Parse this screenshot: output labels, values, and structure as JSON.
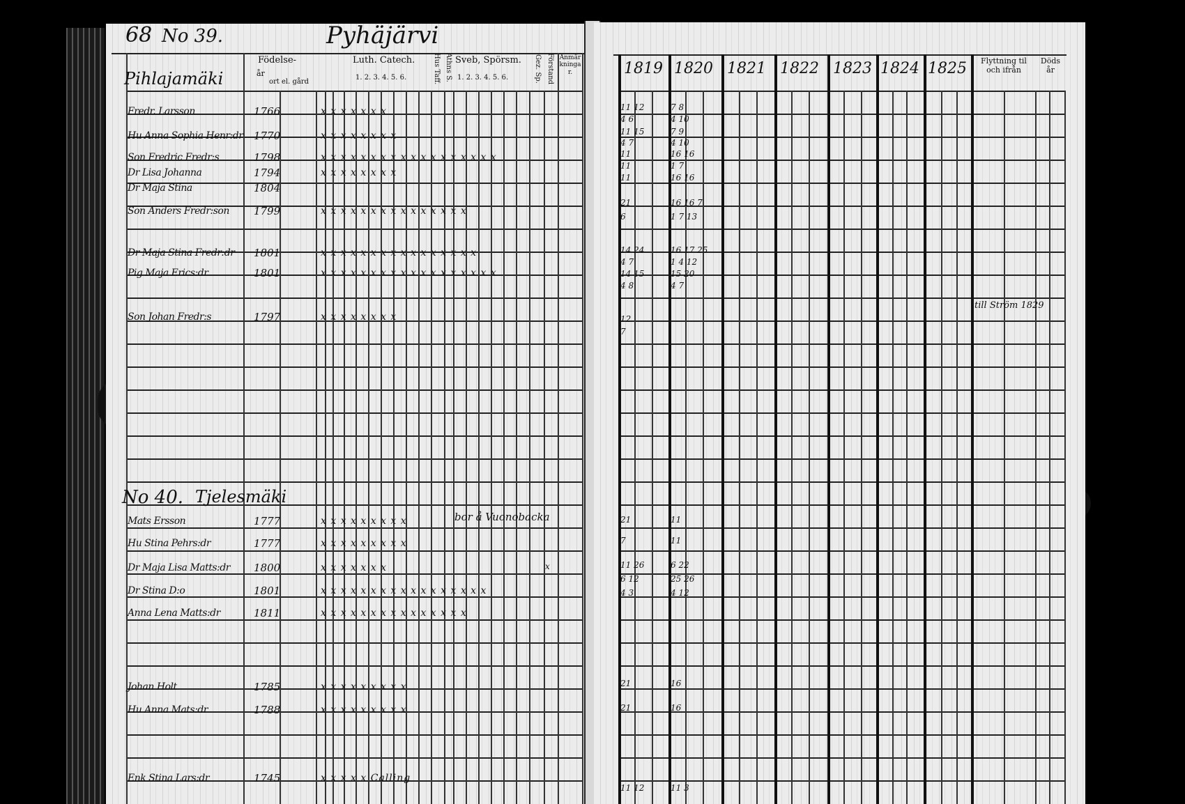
{
  "left_page": {
    "page_number": "68",
    "parish": "Pyhäjärvi",
    "headers": {
      "birth": "Födelse-",
      "year": "år",
      "place": "ort el. gård",
      "luth_catech": "Luth. Catech.",
      "luth_nums": "1. 2. 3. 4. 5. 6.",
      "hus_taff": "Hus Taff.",
      "athns": "Athns S.",
      "sveb": "Sveb, Spörsm.",
      "sveb_nums": "1. 2. 3. 4. 5. 6.",
      "gez": "Gez. Sp.",
      "forstand": "Förstand",
      "remarks": "Anmärkningar."
    },
    "households": [
      {
        "number": "No 39.",
        "farm": "Pihlajamäki",
        "members": [
          {
            "name": "Fredr. Larsson",
            "year": "1766",
            "marks": "x x x x x x x"
          },
          {
            "name": "Hu Anna Sophia Henr:dr",
            "year": "1770",
            "marks": "x x x x x x x x"
          },
          {
            "name": "Son Fredric Fredr:s",
            "year": "1798",
            "marks": "x x x x x x x x x x x x x x x x x  x"
          },
          {
            "name": "Dr Lisa Johanna",
            "year": "1794",
            "marks": "x x x x x x x x"
          },
          {
            "name": "Dr Maja Stina",
            "year": "1804",
            "marks": ""
          },
          {
            "name": "Son Anders Fredr:son",
            "year": "1799",
            "marks": "x x x x x x x x x x x x x x x"
          },
          {
            "name": "Dr Maja Stina Fredr:dr",
            "year": "1801",
            "marks": "x x x x x x x x x x x x x x x  x"
          },
          {
            "name": "Pig Maja Erics:dr",
            "year": "1801",
            "marks": "x x x x x x x x x x x x x x x x x  x"
          },
          {
            "name": "Son Johan Fredr:s",
            "year": "1797",
            "marks": "x x x x x x x x"
          }
        ]
      },
      {
        "number": "No 40.",
        "farm": "Tjelesmäki",
        "members": [
          {
            "name": "Mats Ersson",
            "year": "1777",
            "marks": "x x x x x x x x x",
            "note": "bor å Vuonobacka"
          },
          {
            "name": "Hu Stina Pehrs:dr",
            "year": "1777",
            "marks": "x x x x x x x x x"
          },
          {
            "name": "Dr Maja Lisa Matts:dr",
            "year": "1800",
            "marks": "x x x x x x x",
            "note2": "x"
          },
          {
            "name": "Dr Stina D:o",
            "year": "1801",
            "marks": "x x x x x x x x x x x x x x x x x"
          },
          {
            "name": "Anna Lena Matts:dr",
            "year": "1811",
            "marks": "x x x x x x x x x x x x x x x"
          },
          {
            "name": "Johan Holt",
            "year": "1785",
            "marks": "x x x x x x x x x"
          },
          {
            "name": "Hu Anna Mats:dr",
            "year": "1788",
            "marks": "x x x x x x x x x"
          },
          {
            "name": "Enk Stina Lars:dr",
            "year": "1745",
            "marks": "x x x x x  Calling"
          }
        ]
      }
    ]
  },
  "right_page": {
    "years": [
      "1819",
      "1820",
      "1821",
      "1822",
      "1823",
      "1824",
      "1825"
    ],
    "moving": "Flyttning til och ifrån",
    "death": "Döds år",
    "entries": [
      {
        "c1": "11 12",
        "c2": "7 8"
      },
      {
        "c1": "4 6",
        "c2": "4 10"
      },
      {
        "c1": "11 15",
        "c2": "7 9"
      },
      {
        "c1": "4 7",
        "c2": "4 10"
      },
      {
        "c1": "11",
        "c2": "16 16"
      },
      {
        "c1": "11",
        "c2": "1 7"
      },
      {
        "c1": "11",
        "c2": "16 16"
      },
      {
        "c1": "21",
        "c2": "16 16 7"
      },
      {
        "c1": "6",
        "c2": "1 7 13"
      },
      {
        "c1": "14 24",
        "c2": "16 17 25"
      },
      {
        "c1": "4 7",
        "c2": "1 4 12"
      },
      {
        "c1": "14 15",
        "c2": "15 20"
      },
      {
        "c1": "4 8",
        "c2": "4 7"
      },
      {
        "c1": "12",
        "c2": ""
      },
      {
        "c1": "7",
        "c2": ""
      }
    ],
    "move_note": "till Ström 1829",
    "lower_entries": [
      {
        "c1": "21",
        "c2": "11"
      },
      {
        "c1": "7",
        "c2": "11"
      },
      {
        "c1": "11 26",
        "c2": "6 22"
      },
      {
        "c1": "6 12",
        "c2": "25 26"
      },
      {
        "c1": "4 3",
        "c2": "4 12"
      },
      {
        "c1": "21",
        "c2": "16"
      },
      {
        "c1": "21",
        "c2": "16"
      },
      {
        "c1": "11 12",
        "c2": "11 3"
      }
    ]
  }
}
